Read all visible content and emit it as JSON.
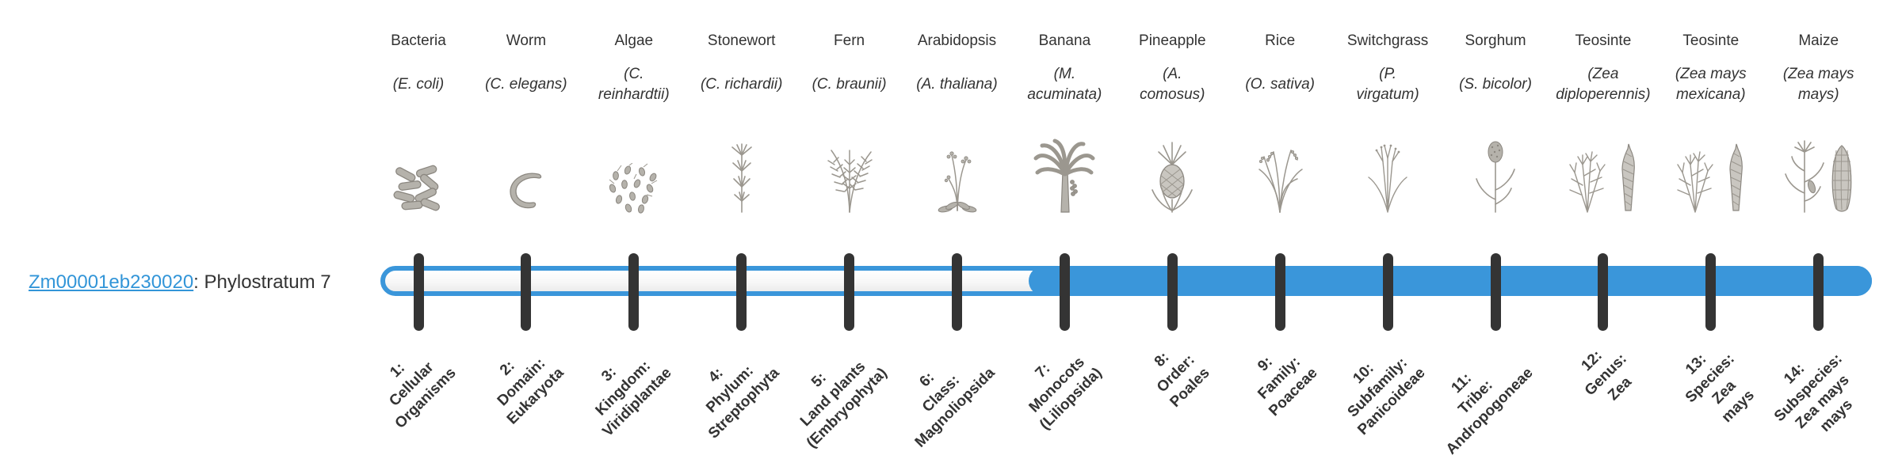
{
  "gene": {
    "id": "Zm00001eb230020",
    "label_suffix": ": Phylostratum 7",
    "phylostratum": 7
  },
  "timeline": {
    "strata_count": 14,
    "filled_from_stratum": 7,
    "filled_to_stratum": 14
  },
  "colors": {
    "bar_blue": "#3a96da",
    "tick_dark": "#343434",
    "text_dark": "#333333",
    "link_blue": "#3295d8",
    "icon_gray": "#9b978f",
    "icon_gray_light": "#b5b2ab",
    "icon_gray_dark": "#8b8780"
  },
  "strata": [
    {
      "num": 1,
      "organism": "Bacteria",
      "species_lines": [
        "(E. coli)"
      ],
      "rank_lines": [
        "1:",
        "Cellular",
        "Organisms"
      ],
      "icon": "bacteria-icon"
    },
    {
      "num": 2,
      "organism": "Worm",
      "species_lines": [
        "(C. elegans)"
      ],
      "rank_lines": [
        "2:",
        "Domain:",
        "Eukaryota"
      ],
      "icon": "worm-icon"
    },
    {
      "num": 3,
      "organism": "Algae",
      "species_lines": [
        "(C.",
        "reinhardtii)"
      ],
      "rank_lines": [
        "3:",
        "Kingdom:",
        "Viridiplantae"
      ],
      "icon": "algae-icon"
    },
    {
      "num": 4,
      "organism": "Stonewort",
      "species_lines": [
        "(C. richardii)"
      ],
      "rank_lines": [
        "4:",
        "Phylum:",
        "Streptophyta"
      ],
      "icon": "stonewort-icon"
    },
    {
      "num": 5,
      "organism": "Fern",
      "species_lines": [
        "(C. braunii)"
      ],
      "rank_lines": [
        "5:",
        "Land plants",
        "(Embryophyta)"
      ],
      "icon": "fern-icon"
    },
    {
      "num": 6,
      "organism": "Arabidopsis",
      "species_lines": [
        "(A. thaliana)"
      ],
      "rank_lines": [
        "6:",
        "Class:",
        "Magnoliopsida"
      ],
      "icon": "arabidopsis-icon"
    },
    {
      "num": 7,
      "organism": "Banana",
      "species_lines": [
        "(M.",
        "acuminata)"
      ],
      "rank_lines": [
        "7:",
        "Monocots",
        "(Liliopsida)"
      ],
      "icon": "banana-icon"
    },
    {
      "num": 8,
      "organism": "Pineapple",
      "species_lines": [
        "(A.",
        "comosus)"
      ],
      "rank_lines": [
        "8:",
        "Order:",
        "Poales"
      ],
      "icon": "pineapple-icon"
    },
    {
      "num": 9,
      "organism": "Rice",
      "species_lines": [
        "(O. sativa)"
      ],
      "rank_lines": [
        "9:",
        "Family:",
        "Poaceae"
      ],
      "icon": "rice-icon"
    },
    {
      "num": 10,
      "organism": "Switchgrass",
      "species_lines": [
        "(P.",
        "virgatum)"
      ],
      "rank_lines": [
        "10:",
        "Subfamily:",
        "Panicoideae"
      ],
      "icon": "switchgrass-icon"
    },
    {
      "num": 11,
      "organism": "Sorghum",
      "species_lines": [
        "(S. bicolor)"
      ],
      "rank_lines": [
        "11:",
        "Tribe:",
        "Andropogoneae"
      ],
      "icon": "sorghum-icon"
    },
    {
      "num": 12,
      "organism": "Teosinte",
      "species_lines": [
        "(Zea",
        "diploperennis)"
      ],
      "rank_lines": [
        "12:",
        "Genus:",
        "Zea"
      ],
      "icon": "teosinte-icon"
    },
    {
      "num": 13,
      "organism": "Teosinte",
      "species_lines": [
        "(Zea mays",
        "mexicana)"
      ],
      "rank_lines": [
        "13:",
        "Species:",
        "Zea",
        "mays"
      ],
      "icon": "teosinte-icon"
    },
    {
      "num": 14,
      "organism": "Maize",
      "species_lines": [
        "(Zea mays",
        "mays)"
      ],
      "rank_lines": [
        "14:",
        "Subspecies:",
        "Zea mays",
        "mays"
      ],
      "icon": "maize-icon"
    }
  ]
}
